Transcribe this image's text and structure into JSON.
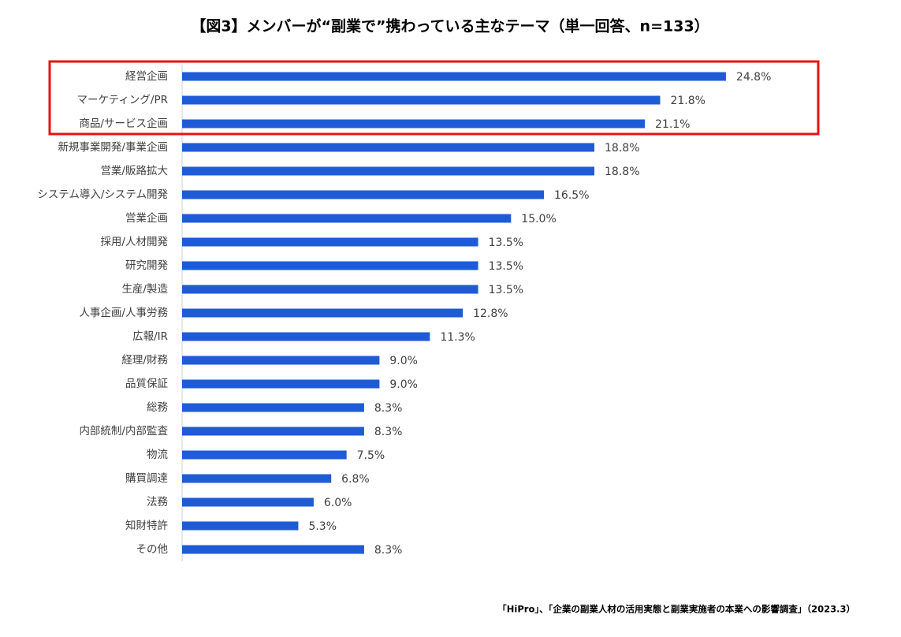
{
  "chart_data": {
    "type": "bar",
    "orientation": "horizontal",
    "title": "【図3】メンバーが“副業で”携わっている主なテーマ（単一回答、n=133）",
    "source": "「HiPro」、「企業の副業人材の活用実態と副業実施者の本業への影響調査」（2023.3）",
    "categories": [
      "経営企画",
      "マーケティング/PR",
      "商品/サービス企画",
      "新規事業開発/事業企画",
      "営業/販路拡大",
      "システム導入/システム開発",
      "営業企画",
      "採用/人材開発",
      "研究開発",
      "生産/製造",
      "人事企画/人事労務",
      "広報/IR",
      "経理/財務",
      "品質保証",
      "総務",
      "内部統制/内部監査",
      "物流",
      "購買調達",
      "法務",
      "知財特許",
      "その他"
    ],
    "values": [
      24.8,
      21.8,
      21.1,
      18.8,
      18.8,
      16.5,
      15.0,
      13.5,
      13.5,
      13.5,
      12.8,
      11.3,
      9.0,
      9.0,
      8.3,
      8.3,
      7.5,
      6.8,
      6.0,
      5.3,
      8.3
    ],
    "value_labels": [
      "24.8%",
      "21.8%",
      "21.1%",
      "18.8%",
      "18.8%",
      "16.5%",
      "15.0%",
      "13.5%",
      "13.5%",
      "13.5%",
      "12.8%",
      "11.3%",
      "9.0%",
      "9.0%",
      "8.3%",
      "8.3%",
      "7.5%",
      "6.8%",
      "6.0%",
      "5.3%",
      "8.3%"
    ],
    "color": "#1f5bd6"
  }
}
